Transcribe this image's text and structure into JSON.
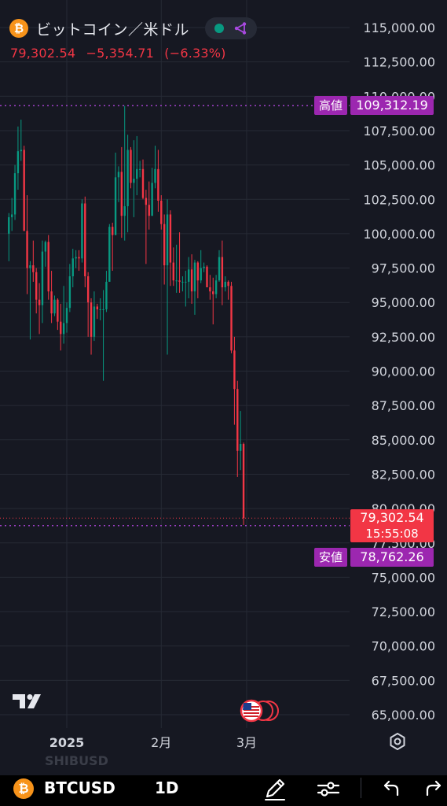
{
  "header": {
    "coin_icon": "bitcoin-icon",
    "coin_glyph": "₿",
    "title": "ビットコイン／米ドル",
    "last_price": "79,302.54",
    "change": "−5,354.71",
    "change_pct": "(−6.33%)"
  },
  "chart_data": {
    "type": "candlestick",
    "symbol": "BTCUSD",
    "interval": "1D",
    "ylim": [
      63700,
      116500
    ],
    "y_ticks": [
      {
        "value": 115000,
        "label": "115,000.00"
      },
      {
        "value": 112500,
        "label": "112,500.00"
      },
      {
        "value": 110000,
        "label": "110,000.00"
      },
      {
        "value": 107500,
        "label": "107,500.00"
      },
      {
        "value": 105000,
        "label": "105,000.00"
      },
      {
        "value": 102500,
        "label": "102,500.00"
      },
      {
        "value": 100000,
        "label": "100,000.00"
      },
      {
        "value": 97500,
        "label": "97,500.00"
      },
      {
        "value": 95000,
        "label": "95,000.00"
      },
      {
        "value": 92500,
        "label": "92,500.00"
      },
      {
        "value": 90000,
        "label": "90,000.00"
      },
      {
        "value": 87500,
        "label": "87,500.00"
      },
      {
        "value": 85000,
        "label": "85,000.00"
      },
      {
        "value": 82500,
        "label": "82,500.00"
      },
      {
        "value": 80000,
        "label": "80,000.00"
      },
      {
        "value": 77500,
        "label": "77,500.00"
      },
      {
        "value": 75000,
        "label": "75,000.00"
      },
      {
        "value": 72500,
        "label": "72,500.00"
      },
      {
        "value": 70000,
        "label": "70,000.00"
      },
      {
        "value": 67500,
        "label": "67,500.00"
      },
      {
        "value": 65000,
        "label": "65,000.00"
      }
    ],
    "x_ticks": [
      {
        "date": "2025-01-01",
        "label": "2025"
      },
      {
        "date": "2025-02-01",
        "label": "2月"
      },
      {
        "date": "2025-03-01",
        "label": "3月"
      }
    ],
    "high": {
      "label": "高値",
      "value": 109312.19,
      "text": "109,312.19"
    },
    "low": {
      "label": "安値",
      "value": 78762.26,
      "text": "78,762.26"
    },
    "last": {
      "value": 79302.54,
      "text": "79,302.54",
      "countdown": "15:55:08"
    },
    "candles": [
      {
        "d": "2024-12-13",
        "o": 100000,
        "h": 101500,
        "l": 98000,
        "c": 101200
      },
      {
        "d": "2024-12-14",
        "o": 101200,
        "h": 102600,
        "l": 100200,
        "c": 101400
      },
      {
        "d": "2024-12-15",
        "o": 101400,
        "h": 105000,
        "l": 101000,
        "c": 104400
      },
      {
        "d": "2024-12-16",
        "o": 104400,
        "h": 107800,
        "l": 103200,
        "c": 106000
      },
      {
        "d": "2024-12-17",
        "o": 106000,
        "h": 108300,
        "l": 105300,
        "c": 106100
      },
      {
        "d": "2024-12-18",
        "o": 106100,
        "h": 106400,
        "l": 100200,
        "c": 100200
      },
      {
        "d": "2024-12-19",
        "o": 100200,
        "h": 102800,
        "l": 95600,
        "c": 97500
      },
      {
        "d": "2024-12-20",
        "o": 97500,
        "h": 98000,
        "l": 92300,
        "c": 97700
      },
      {
        "d": "2024-12-21",
        "o": 97700,
        "h": 99500,
        "l": 96500,
        "c": 97200
      },
      {
        "d": "2024-12-22",
        "o": 97200,
        "h": 97500,
        "l": 94200,
        "c": 95200
      },
      {
        "d": "2024-12-23",
        "o": 95200,
        "h": 96400,
        "l": 92700,
        "c": 94800
      },
      {
        "d": "2024-12-24",
        "o": 94800,
        "h": 99500,
        "l": 93500,
        "c": 98700
      },
      {
        "d": "2024-12-25",
        "o": 98700,
        "h": 99500,
        "l": 97600,
        "c": 99400
      },
      {
        "d": "2024-12-26",
        "o": 99400,
        "h": 99900,
        "l": 95200,
        "c": 95800
      },
      {
        "d": "2024-12-27",
        "o": 95800,
        "h": 97300,
        "l": 93500,
        "c": 94200
      },
      {
        "d": "2024-12-28",
        "o": 94200,
        "h": 95500,
        "l": 94000,
        "c": 95200
      },
      {
        "d": "2024-12-29",
        "o": 95200,
        "h": 95300,
        "l": 93000,
        "c": 93600
      },
      {
        "d": "2024-12-30",
        "o": 93600,
        "h": 94900,
        "l": 91500,
        "c": 92700
      },
      {
        "d": "2024-12-31",
        "o": 92700,
        "h": 96200,
        "l": 92000,
        "c": 93500
      },
      {
        "d": "2025-01-01",
        "o": 93500,
        "h": 95000,
        "l": 92800,
        "c": 94600
      },
      {
        "d": "2025-01-02",
        "o": 94600,
        "h": 97800,
        "l": 94300,
        "c": 96900
      },
      {
        "d": "2025-01-03",
        "o": 96900,
        "h": 98900,
        "l": 96100,
        "c": 98200
      },
      {
        "d": "2025-01-04",
        "o": 98200,
        "h": 98800,
        "l": 97500,
        "c": 98300
      },
      {
        "d": "2025-01-05",
        "o": 98300,
        "h": 98800,
        "l": 97300,
        "c": 98200
      },
      {
        "d": "2025-01-06",
        "o": 98200,
        "h": 102500,
        "l": 97900,
        "c": 102200
      },
      {
        "d": "2025-01-07",
        "o": 102200,
        "h": 102700,
        "l": 96100,
        "c": 96900
      },
      {
        "d": "2025-01-08",
        "o": 96900,
        "h": 97200,
        "l": 92500,
        "c": 95000
      },
      {
        "d": "2025-01-09",
        "o": 95000,
        "h": 95300,
        "l": 91200,
        "c": 92500
      },
      {
        "d": "2025-01-10",
        "o": 92500,
        "h": 95800,
        "l": 92200,
        "c": 94700
      },
      {
        "d": "2025-01-11",
        "o": 94700,
        "h": 94900,
        "l": 93800,
        "c": 94500
      },
      {
        "d": "2025-01-12",
        "o": 94500,
        "h": 95300,
        "l": 93700,
        "c": 94500
      },
      {
        "d": "2025-01-13",
        "o": 94500,
        "h": 95900,
        "l": 89300,
        "c": 94500
      },
      {
        "d": "2025-01-14",
        "o": 94500,
        "h": 97300,
        "l": 94300,
        "c": 96500
      },
      {
        "d": "2025-01-15",
        "o": 96500,
        "h": 100700,
        "l": 96500,
        "c": 100500
      },
      {
        "d": "2025-01-16",
        "o": 100500,
        "h": 100800,
        "l": 97300,
        "c": 99900
      },
      {
        "d": "2025-01-17",
        "o": 99900,
        "h": 105900,
        "l": 99900,
        "c": 104100
      },
      {
        "d": "2025-01-18",
        "o": 104100,
        "h": 104900,
        "l": 102300,
        "c": 104500
      },
      {
        "d": "2025-01-19",
        "o": 104500,
        "h": 106300,
        "l": 99700,
        "c": 101300
      },
      {
        "d": "2025-01-20",
        "o": 101300,
        "h": 109300,
        "l": 99500,
        "c": 102000
      },
      {
        "d": "2025-01-21",
        "o": 102000,
        "h": 107200,
        "l": 100100,
        "c": 106100
      },
      {
        "d": "2025-01-22",
        "o": 106100,
        "h": 106300,
        "l": 103300,
        "c": 103700
      },
      {
        "d": "2025-01-23",
        "o": 103700,
        "h": 106800,
        "l": 101200,
        "c": 104000
      },
      {
        "d": "2025-01-24",
        "o": 104000,
        "h": 107100,
        "l": 102800,
        "c": 104700
      },
      {
        "d": "2025-01-25",
        "o": 104700,
        "h": 105300,
        "l": 104100,
        "c": 104700
      },
      {
        "d": "2025-01-26",
        "o": 104700,
        "h": 105400,
        "l": 102500,
        "c": 102600
      },
      {
        "d": "2025-01-27",
        "o": 102600,
        "h": 103200,
        "l": 97800,
        "c": 102100
      },
      {
        "d": "2025-01-28",
        "o": 102100,
        "h": 103800,
        "l": 100300,
        "c": 101300
      },
      {
        "d": "2025-01-29",
        "o": 101300,
        "h": 104800,
        "l": 101300,
        "c": 103700
      },
      {
        "d": "2025-01-30",
        "o": 103700,
        "h": 106400,
        "l": 103300,
        "c": 104700
      },
      {
        "d": "2025-01-31",
        "o": 104700,
        "h": 106100,
        "l": 101600,
        "c": 102400
      },
      {
        "d": "2025-02-01",
        "o": 102400,
        "h": 102800,
        "l": 100300,
        "c": 100700
      },
      {
        "d": "2025-02-02",
        "o": 100700,
        "h": 101400,
        "l": 96300,
        "c": 97700
      },
      {
        "d": "2025-02-03",
        "o": 97700,
        "h": 102500,
        "l": 91200,
        "c": 101400
      },
      {
        "d": "2025-02-04",
        "o": 101400,
        "h": 101700,
        "l": 96200,
        "c": 97900
      },
      {
        "d": "2025-02-05",
        "o": 97900,
        "h": 99000,
        "l": 96200,
        "c": 96600
      },
      {
        "d": "2025-02-06",
        "o": 96600,
        "h": 99200,
        "l": 95700,
        "c": 96600
      },
      {
        "d": "2025-02-07",
        "o": 96600,
        "h": 100100,
        "l": 95700,
        "c": 96500
      },
      {
        "d": "2025-02-08",
        "o": 96500,
        "h": 96900,
        "l": 95800,
        "c": 96500
      },
      {
        "d": "2025-02-09",
        "o": 96500,
        "h": 97300,
        "l": 94700,
        "c": 96500
      },
      {
        "d": "2025-02-10",
        "o": 96500,
        "h": 98300,
        "l": 95300,
        "c": 97400
      },
      {
        "d": "2025-02-11",
        "o": 97400,
        "h": 98500,
        "l": 94900,
        "c": 95800
      },
      {
        "d": "2025-02-12",
        "o": 95800,
        "h": 98100,
        "l": 94100,
        "c": 97900
      },
      {
        "d": "2025-02-13",
        "o": 97900,
        "h": 98000,
        "l": 95300,
        "c": 96600
      },
      {
        "d": "2025-02-14",
        "o": 96600,
        "h": 98800,
        "l": 96400,
        "c": 97500
      },
      {
        "d": "2025-02-15",
        "o": 97500,
        "h": 97900,
        "l": 97200,
        "c": 97600
      },
      {
        "d": "2025-02-16",
        "o": 97600,
        "h": 97700,
        "l": 96100,
        "c": 96100
      },
      {
        "d": "2025-02-17",
        "o": 96100,
        "h": 97000,
        "l": 95200,
        "c": 95800
      },
      {
        "d": "2025-02-18",
        "o": 95800,
        "h": 96800,
        "l": 93400,
        "c": 95600
      },
      {
        "d": "2025-02-19",
        "o": 95600,
        "h": 97000,
        "l": 95300,
        "c": 96600
      },
      {
        "d": "2025-02-20",
        "o": 96600,
        "h": 98800,
        "l": 96500,
        "c": 98300
      },
      {
        "d": "2025-02-21",
        "o": 98300,
        "h": 99500,
        "l": 94800,
        "c": 96100
      },
      {
        "d": "2025-02-22",
        "o": 96100,
        "h": 96900,
        "l": 95800,
        "c": 96500
      },
      {
        "d": "2025-02-23",
        "o": 96500,
        "h": 96600,
        "l": 95200,
        "c": 96200
      },
      {
        "d": "2025-02-24",
        "o": 96200,
        "h": 96500,
        "l": 91300,
        "c": 91500
      },
      {
        "d": "2025-02-25",
        "o": 91500,
        "h": 92500,
        "l": 86100,
        "c": 88700
      },
      {
        "d": "2025-02-26",
        "o": 88700,
        "h": 89300,
        "l": 82300,
        "c": 84200
      },
      {
        "d": "2025-02-27",
        "o": 84200,
        "h": 87100,
        "l": 82800,
        "c": 84700
      },
      {
        "d": "2025-02-28",
        "o": 84700,
        "h": 84800,
        "l": 78800,
        "c": 79300
      }
    ]
  },
  "toolbar": {
    "ghost_symbol": "SHIBUSD",
    "symbol": "BTCUSD",
    "interval": "1D",
    "icons": [
      "draw-pencil-icon",
      "indicator-settings-icon",
      "undo-icon",
      "redo-icon"
    ]
  },
  "colors": {
    "background": "#161822",
    "up": "#089981",
    "down": "#f23645",
    "extreme_label": "#9c27b0",
    "high_low_line": "#a040c8",
    "last_price_line": "#f23645",
    "bitcoin": "#f7931a"
  }
}
